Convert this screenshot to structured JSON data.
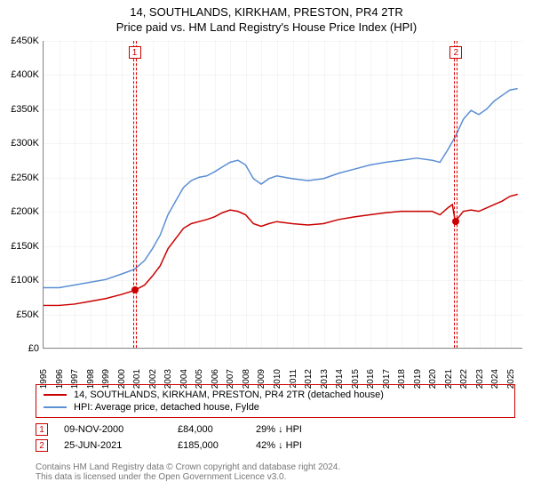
{
  "title": "14, SOUTHLANDS, KIRKHAM, PRESTON, PR4 2TR",
  "subtitle": "Price paid vs. HM Land Registry's House Price Index (HPI)",
  "chart": {
    "type": "line",
    "ylabel_prefix": "£",
    "ylim": [
      0,
      450000
    ],
    "ytick_step": 50000,
    "yticks": [
      "£0",
      "£50K",
      "£100K",
      "£150K",
      "£200K",
      "£250K",
      "£300K",
      "£350K",
      "£400K",
      "£450K"
    ],
    "xlim": [
      1995,
      2025.8
    ],
    "xticks": [
      1995,
      1996,
      1997,
      1998,
      1999,
      2000,
      2001,
      2002,
      2003,
      2004,
      2005,
      2006,
      2007,
      2008,
      2009,
      2010,
      2011,
      2012,
      2013,
      2014,
      2015,
      2016,
      2017,
      2018,
      2019,
      2020,
      2021,
      2022,
      2023,
      2024,
      2025
    ],
    "background_color": "#ffffff",
    "grid_color": "rgba(0,0,0,0.04)",
    "series": [
      {
        "name": "14, SOUTHLANDS, KIRKHAM, PRESTON, PR4 2TR (detached house)",
        "color": "#cc0000",
        "line_width": 1.5,
        "data": [
          [
            1995,
            62000
          ],
          [
            1996,
            62000
          ],
          [
            1997,
            64000
          ],
          [
            1998,
            68000
          ],
          [
            1999,
            72000
          ],
          [
            2000,
            78000
          ],
          [
            2000.85,
            84000
          ],
          [
            2001.5,
            92000
          ],
          [
            2002,
            105000
          ],
          [
            2002.5,
            120000
          ],
          [
            2003,
            145000
          ],
          [
            2003.5,
            160000
          ],
          [
            2004,
            175000
          ],
          [
            2004.5,
            182000
          ],
          [
            2005,
            185000
          ],
          [
            2005.5,
            188000
          ],
          [
            2006,
            192000
          ],
          [
            2006.5,
            198000
          ],
          [
            2007,
            202000
          ],
          [
            2007.5,
            200000
          ],
          [
            2008,
            195000
          ],
          [
            2008.5,
            182000
          ],
          [
            2009,
            178000
          ],
          [
            2009.5,
            182000
          ],
          [
            2010,
            185000
          ],
          [
            2011,
            182000
          ],
          [
            2012,
            180000
          ],
          [
            2013,
            182000
          ],
          [
            2014,
            188000
          ],
          [
            2015,
            192000
          ],
          [
            2016,
            195000
          ],
          [
            2017,
            198000
          ],
          [
            2018,
            200000
          ],
          [
            2019,
            200000
          ],
          [
            2020,
            200000
          ],
          [
            2020.5,
            195000
          ],
          [
            2021,
            205000
          ],
          [
            2021.3,
            210000
          ],
          [
            2021.48,
            185000
          ],
          [
            2022,
            200000
          ],
          [
            2022.5,
            202000
          ],
          [
            2023,
            200000
          ],
          [
            2023.5,
            205000
          ],
          [
            2024,
            210000
          ],
          [
            2024.5,
            215000
          ],
          [
            2025,
            222000
          ],
          [
            2025.5,
            225000
          ]
        ]
      },
      {
        "name": "HPI: Average price, detached house, Fylde",
        "color": "#5b8fd6",
        "line_width": 1.5,
        "data": [
          [
            1995,
            88000
          ],
          [
            1996,
            88000
          ],
          [
            1997,
            92000
          ],
          [
            1998,
            96000
          ],
          [
            1999,
            100000
          ],
          [
            2000,
            108000
          ],
          [
            2000.85,
            115000
          ],
          [
            2001.5,
            128000
          ],
          [
            2002,
            145000
          ],
          [
            2002.5,
            165000
          ],
          [
            2003,
            195000
          ],
          [
            2003.5,
            215000
          ],
          [
            2004,
            235000
          ],
          [
            2004.5,
            245000
          ],
          [
            2005,
            250000
          ],
          [
            2005.5,
            252000
          ],
          [
            2006,
            258000
          ],
          [
            2006.5,
            265000
          ],
          [
            2007,
            272000
          ],
          [
            2007.5,
            275000
          ],
          [
            2008,
            268000
          ],
          [
            2008.5,
            248000
          ],
          [
            2009,
            240000
          ],
          [
            2009.5,
            248000
          ],
          [
            2010,
            252000
          ],
          [
            2011,
            248000
          ],
          [
            2012,
            245000
          ],
          [
            2013,
            248000
          ],
          [
            2014,
            256000
          ],
          [
            2015,
            262000
          ],
          [
            2016,
            268000
          ],
          [
            2017,
            272000
          ],
          [
            2018,
            275000
          ],
          [
            2019,
            278000
          ],
          [
            2020,
            275000
          ],
          [
            2020.5,
            272000
          ],
          [
            2021,
            290000
          ],
          [
            2021.5,
            310000
          ],
          [
            2022,
            335000
          ],
          [
            2022.5,
            348000
          ],
          [
            2023,
            342000
          ],
          [
            2023.5,
            350000
          ],
          [
            2024,
            362000
          ],
          [
            2024.5,
            370000
          ],
          [
            2025,
            378000
          ],
          [
            2025.5,
            380000
          ]
        ]
      }
    ],
    "sale_markers": [
      {
        "n": "1",
        "x": 2000.85,
        "y": 84000
      },
      {
        "n": "2",
        "x": 2021.48,
        "y": 185000
      }
    ]
  },
  "legend": [
    {
      "color": "#cc0000",
      "label": "14, SOUTHLANDS, KIRKHAM, PRESTON, PR4 2TR (detached house)"
    },
    {
      "color": "#5b8fd6",
      "label": "HPI: Average price, detached house, Fylde"
    }
  ],
  "sales": [
    {
      "n": "1",
      "date": "09-NOV-2000",
      "price": "£84,000",
      "delta": "29% ↓ HPI"
    },
    {
      "n": "2",
      "date": "25-JUN-2021",
      "price": "£185,000",
      "delta": "42% ↓ HPI"
    }
  ],
  "footer_line1": "Contains HM Land Registry data © Crown copyright and database right 2024.",
  "footer_line2": "This data is licensed under the Open Government Licence v3.0."
}
